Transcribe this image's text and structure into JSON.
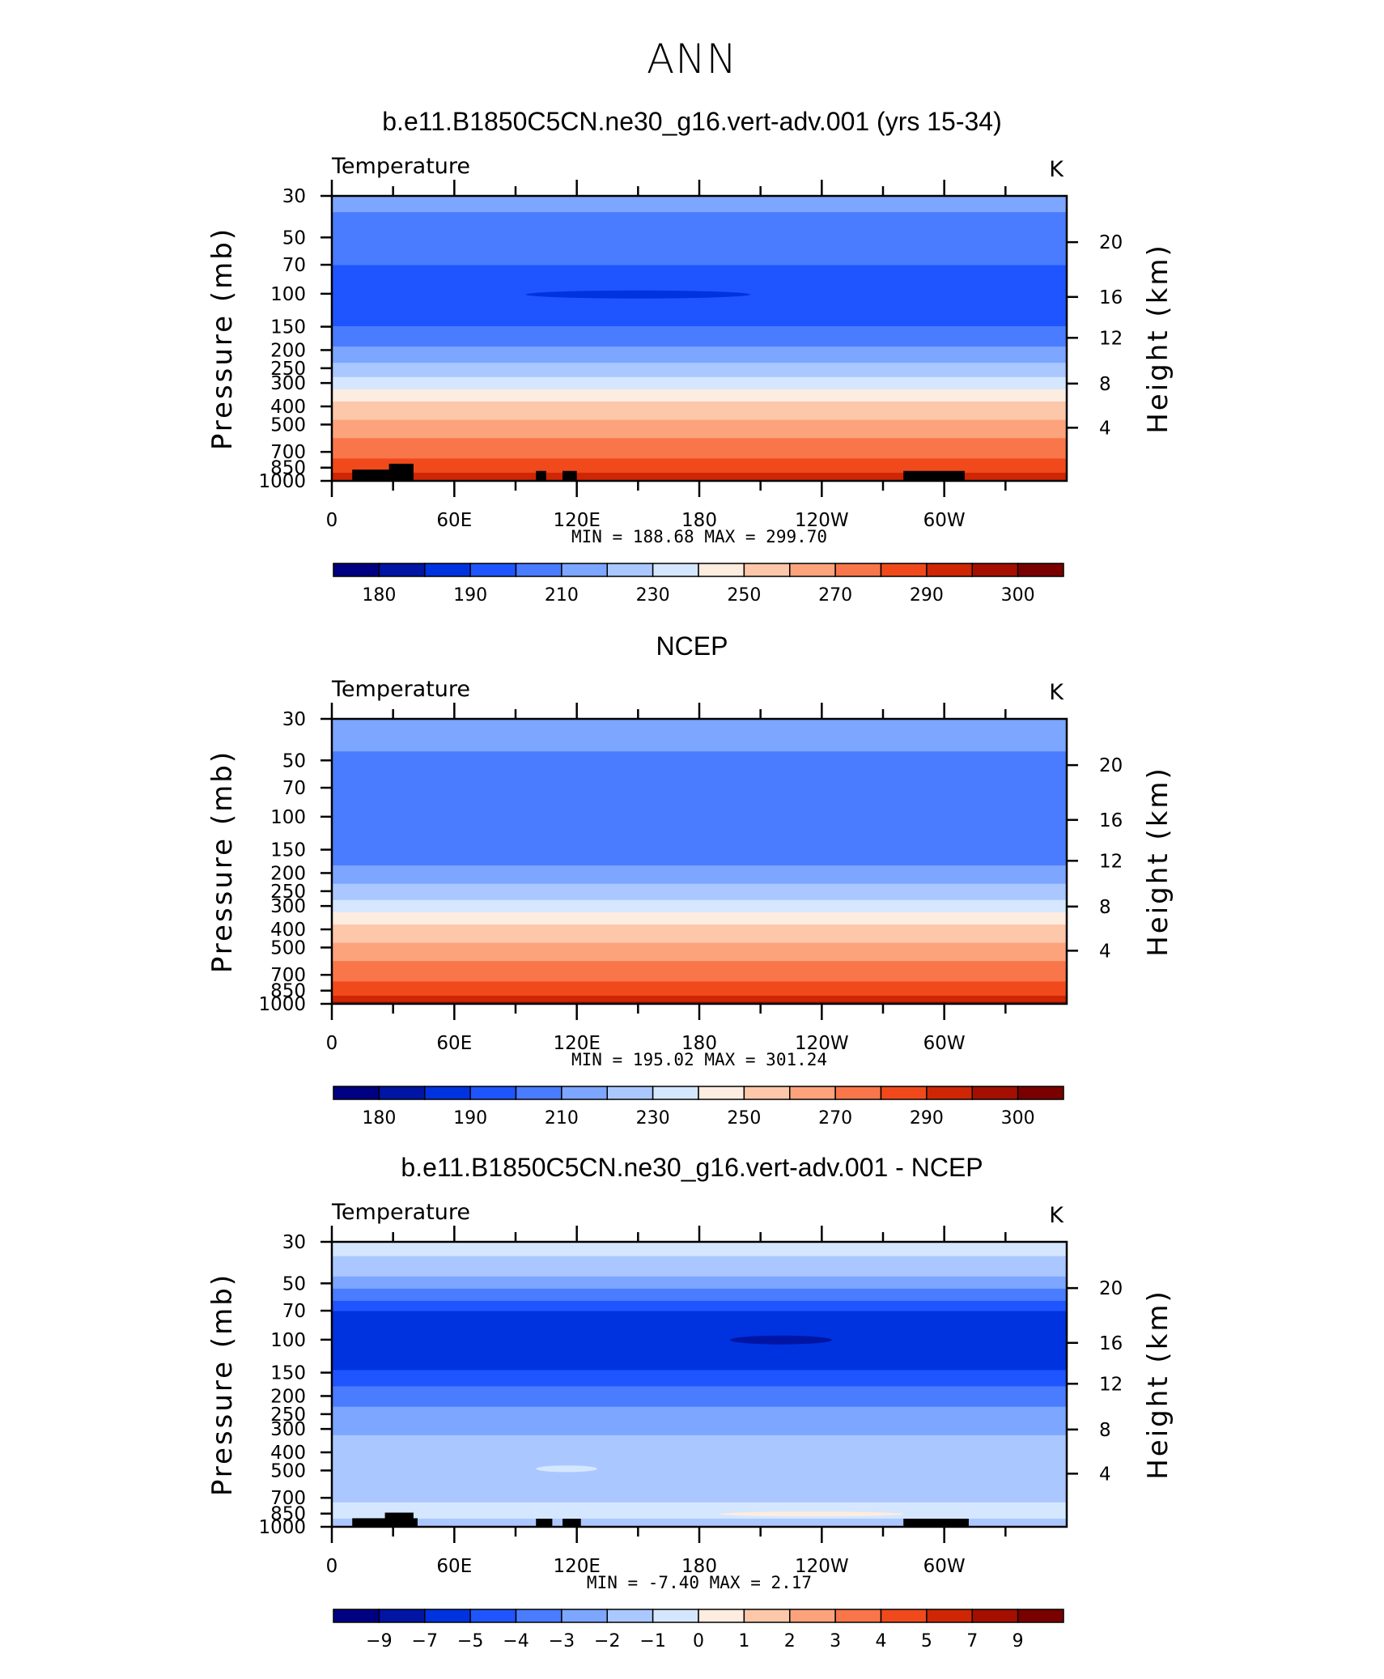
{
  "figure": {
    "title": "ANN",
    "variable_label": "Temperature",
    "units_label": "K",
    "y_left_label": "Pressure (mb)",
    "y_right_label": "Height (km)",
    "pressure_ticks": [
      "30",
      "50",
      "70",
      "100",
      "150",
      "200",
      "250",
      "300",
      "400",
      "500",
      "700",
      "850",
      "1000"
    ],
    "height_ticks": [
      "20",
      "16",
      "12",
      "8",
      "4"
    ],
    "lon_ticks": [
      "0",
      "60E",
      "120E",
      "180",
      "120W",
      "60W"
    ]
  },
  "colors": {
    "abs_scale": [
      "#000082",
      "#0015a4",
      "#0033e0",
      "#1f55ff",
      "#4a7cff",
      "#7ca6ff",
      "#aac8ff",
      "#d5e7ff",
      "#fdece0",
      "#fdc7aa",
      "#fca37c",
      "#f9764a",
      "#f04a1c",
      "#cf2606",
      "#a40f00",
      "#7a0000"
    ],
    "diff_scale": [
      "#000082",
      "#0015a4",
      "#0033e0",
      "#1f55ff",
      "#4a7cff",
      "#7ca6ff",
      "#aac8ff",
      "#d5e7ff",
      "#fdece0",
      "#fdc7aa",
      "#fca37c",
      "#f9764a",
      "#f04a1c",
      "#cf2606",
      "#a40f00",
      "#7a0000"
    ],
    "topography": "#000000"
  },
  "chart_data": [
    {
      "type": "heatmap",
      "title": "b.e11.B1850C5CN.ne30_g16.vert-adv.001 (yrs 15-34)",
      "variable": "Temperature",
      "units": "K",
      "x": "longitude",
      "xlim": [
        0,
        360
      ],
      "ylim_pressure_mb": [
        1000,
        30
      ],
      "min_max_text": "MIN =  188.68   MAX =  299.70",
      "min": 188.68,
      "max": 299.7,
      "colorbar_labels": [
        "180",
        "190",
        "210",
        "230",
        "250",
        "270",
        "290",
        "300"
      ],
      "profile": [
        {
          "p": 30,
          "value": 212
        },
        {
          "p": 45,
          "value": 208
        },
        {
          "p": 60,
          "value": 202
        },
        {
          "p": 100,
          "value": 195
        },
        {
          "p": 140,
          "value": 198
        },
        {
          "p": 175,
          "value": 205
        },
        {
          "p": 200,
          "value": 212
        },
        {
          "p": 240,
          "value": 222
        },
        {
          "p": 285,
          "value": 232
        },
        {
          "p": 330,
          "value": 242
        },
        {
          "p": 380,
          "value": 250
        },
        {
          "p": 450,
          "value": 258
        },
        {
          "p": 520,
          "value": 264
        },
        {
          "p": 620,
          "value": 272
        },
        {
          "p": 720,
          "value": 278
        },
        {
          "p": 820,
          "value": 284
        },
        {
          "p": 900,
          "value": 290
        },
        {
          "p": 1000,
          "value": 295
        }
      ],
      "regions": [
        {
          "lon": [
            95,
            205
          ],
          "p": [
            96,
            106
          ],
          "value": 188.68
        }
      ],
      "topography": [
        {
          "lon": [
            10,
            40
          ],
          "p": [
            870,
            1000
          ]
        },
        {
          "lon": [
            28,
            40
          ],
          "p": [
            810,
            1000
          ]
        },
        {
          "lon": [
            100,
            105
          ],
          "p": [
            885,
            1000
          ]
        },
        {
          "lon": [
            113,
            120
          ],
          "p": [
            885,
            1000
          ]
        },
        {
          "lon": [
            280,
            310
          ],
          "p": [
            885,
            1000
          ]
        }
      ]
    },
    {
      "type": "heatmap",
      "title": "NCEP",
      "variable": "Temperature",
      "units": "K",
      "x": "longitude",
      "xlim": [
        0,
        360
      ],
      "ylim_pressure_mb": [
        1000,
        30
      ],
      "min_max_text": "MIN =  195.02   MAX =  301.24",
      "min": 195.02,
      "max": 301.24,
      "colorbar_labels": [
        "180",
        "190",
        "210",
        "230",
        "250",
        "270",
        "290",
        "300"
      ],
      "profile": [
        {
          "p": 30,
          "value": 215
        },
        {
          "p": 45,
          "value": 210
        },
        {
          "p": 60,
          "value": 205
        },
        {
          "p": 100,
          "value": 200
        },
        {
          "p": 140,
          "value": 200
        },
        {
          "p": 175,
          "value": 208
        },
        {
          "p": 200,
          "value": 214
        },
        {
          "p": 240,
          "value": 222
        },
        {
          "p": 285,
          "value": 232
        },
        {
          "p": 330,
          "value": 242
        },
        {
          "p": 380,
          "value": 250
        },
        {
          "p": 450,
          "value": 258
        },
        {
          "p": 520,
          "value": 264
        },
        {
          "p": 620,
          "value": 272
        },
        {
          "p": 720,
          "value": 278
        },
        {
          "p": 820,
          "value": 284
        },
        {
          "p": 900,
          "value": 290
        },
        {
          "p": 1000,
          "value": 296
        }
      ],
      "regions": [],
      "topography": []
    },
    {
      "type": "heatmap",
      "title": "b.e11.B1850C5CN.ne30_g16.vert-adv.001 - NCEP",
      "variable": "Temperature",
      "units": "K",
      "x": "longitude",
      "xlim": [
        0,
        360
      ],
      "ylim_pressure_mb": [
        1000,
        30
      ],
      "min_max_text": "MIN =   -7.40   MAX =     2.17",
      "min": -7.4,
      "max": 2.17,
      "colorbar_labels": [
        "-9",
        "-7",
        "-5",
        "-4",
        "-3",
        "-2",
        "-1",
        "0",
        "1",
        "2",
        "3",
        "4",
        "5",
        "7",
        "9"
      ],
      "profile": [
        {
          "p": 30,
          "value": -0.5
        },
        {
          "p": 42,
          "value": -1.5
        },
        {
          "p": 58,
          "value": -3.5
        },
        {
          "p": 75,
          "value": -5.5
        },
        {
          "p": 130,
          "value": -5.5
        },
        {
          "p": 160,
          "value": -4.5
        },
        {
          "p": 200,
          "value": -3.5
        },
        {
          "p": 260,
          "value": -2.5
        },
        {
          "p": 400,
          "value": -1.5
        },
        {
          "p": 700,
          "value": -1.5
        },
        {
          "p": 800,
          "value": -0.5
        },
        {
          "p": 1000,
          "value": -1.5
        }
      ],
      "regions": [
        {
          "lon": [
            195,
            245
          ],
          "p": [
            95,
            106
          ],
          "value": -7.4
        },
        {
          "lon": [
            190,
            280
          ],
          "p": [
            830,
            880
          ],
          "value": 0.5
        },
        {
          "lon": [
            100,
            130
          ],
          "p": [
            470,
            510
          ],
          "value": -0.5
        }
      ],
      "topography": [
        {
          "lon": [
            10,
            42
          ],
          "p": [
            900,
            1000
          ]
        },
        {
          "lon": [
            26,
            40
          ],
          "p": [
            840,
            1000
          ]
        },
        {
          "lon": [
            100,
            108
          ],
          "p": [
            905,
            1000
          ]
        },
        {
          "lon": [
            113,
            122
          ],
          "p": [
            905,
            1000
          ]
        },
        {
          "lon": [
            280,
            312
          ],
          "p": [
            905,
            1000
          ]
        }
      ]
    }
  ]
}
